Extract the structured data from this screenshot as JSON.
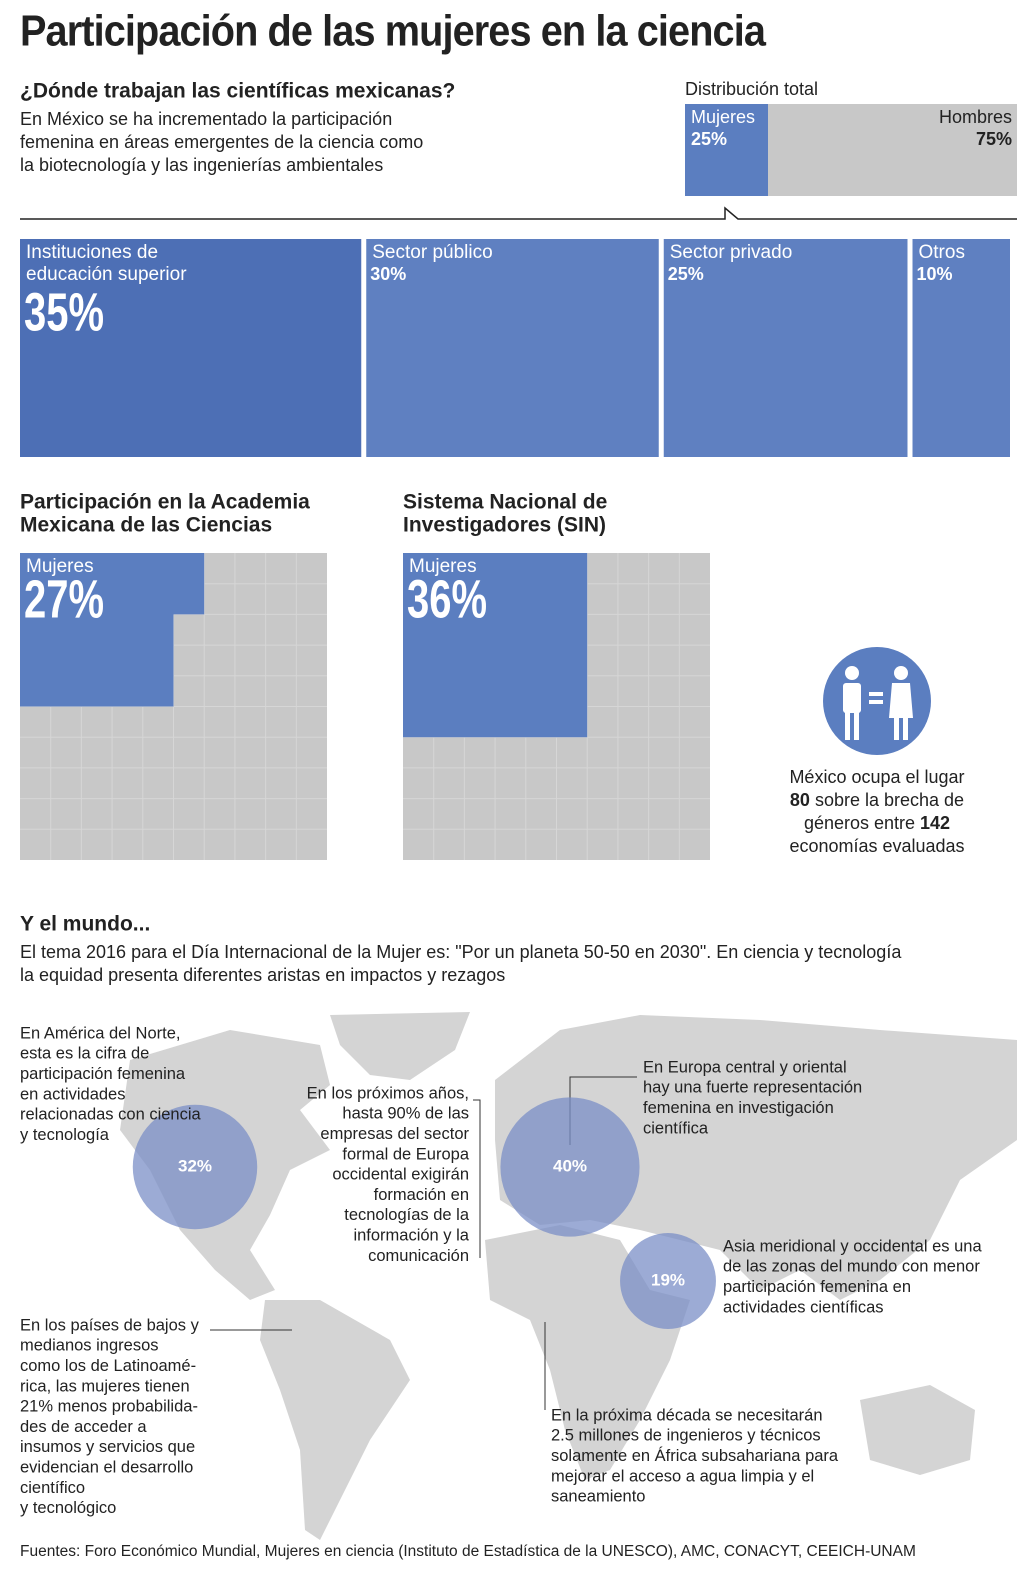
{
  "title": "Participación de las mujeres en la ciencia",
  "intro": {
    "heading": "¿Dónde trabajan las científicas mexicanas?",
    "lines": [
      "En México se ha incrementado la participación",
      "femenina en áreas emergentes de la ciencia como",
      "la biotecnología y las ingenierías ambientales"
    ]
  },
  "distribution": {
    "title": "Distribución total",
    "segments": [
      {
        "name": "Mujeres",
        "value": 25,
        "label": "25%",
        "color": "#5b7ec0"
      },
      {
        "name": "Hombres",
        "value": 75,
        "label": "75%",
        "color": "#c8c8c8"
      }
    ]
  },
  "sectors": [
    {
      "name_lines": [
        "Instituciones de",
        "educación superior"
      ],
      "value": 35,
      "label": "35%",
      "color": "#4d6fb5"
    },
    {
      "name_lines": [
        "Sector público"
      ],
      "value": 30,
      "label": "30%",
      "color": "#5f80c1"
    },
    {
      "name_lines": [
        "Sector privado"
      ],
      "value": 25,
      "label": "25%",
      "color": "#5f80c1"
    },
    {
      "name_lines": [
        "Otros"
      ],
      "value": 10,
      "label": "10%",
      "color": "#5f80c1"
    }
  ],
  "grids": [
    {
      "title_lines": [
        "Participación en la Academia",
        "Mexicana de las Ciencias"
      ],
      "name": "Mujeres",
      "value": 27,
      "label": "27%",
      "color": "#5b7ec0",
      "rest_color": "#c8c8c8"
    },
    {
      "title_lines": [
        "Sistema Nacional de",
        "Investigadores (SIN)"
      ],
      "name": "Mujeres",
      "value": 36,
      "label": "36%",
      "color": "#5b7ec0",
      "rest_color": "#c8c8c8"
    }
  ],
  "ranking": {
    "line1": "México ocupa el lugar",
    "place": 80,
    "line2": "sobre la brecha de",
    "line3": "géneros entre",
    "total": 142,
    "line4": "economías evaluadas"
  },
  "world": {
    "heading": "Y el mundo...",
    "lines": [
      "El tema 2016 para el Día Internacional de la Mujer es: \"Por un planeta 50-50 en 2030\". En ciencia y tecnología",
      "la equidad presenta diferentes aristas en impactos y rezagos"
    ],
    "bubbles": [
      {
        "value": 32,
        "label": "32%"
      },
      {
        "value": 40,
        "label": "40%"
      },
      {
        "value": 19,
        "label": "19%"
      }
    ],
    "notes": [
      {
        "lines": [
          "En América del Norte,",
          "esta es la cifra de",
          "participación femenina",
          "en actividades",
          "relacionadas con ciencia",
          "y tecnología"
        ]
      },
      {
        "lines": [
          "En los próximos años,",
          "hasta 90% de las",
          "empresas  del sector",
          "formal de Europa",
          "occidental exigirán",
          "formación en",
          "tecnologías de la",
          "información y la",
          "comunicación"
        ]
      },
      {
        "lines": [
          "En Europa central y oriental",
          "hay  una fuerte representación",
          "femenina en investigación",
          "científica"
        ]
      },
      {
        "lines": [
          "Asia meridional y occidental es una",
          "de las zonas del mundo con menor",
          "participación femenina en",
          "actividades científicas"
        ]
      },
      {
        "lines": [
          "En los países de bajos y",
          "medianos ingresos",
          "como los de Latinoamé-",
          "rica, las mujeres tienen",
          "21% menos probabilida-",
          "des de acceder a",
          "insumos y servicios que",
          "evidencian el desarrollo",
          "científico",
          "y tecnológico"
        ]
      },
      {
        "lines": [
          "En la próxima década se necesitarán",
          "2.5 millones de ingenieros y técnicos",
          "solamente en África subsahariana para",
          "mejorar el acceso a agua limpia y el",
          "saneamiento"
        ]
      }
    ]
  },
  "sources": "Fuentes: Foro Económico Mundial, Mujeres en ciencia (Instituto de Estadística de la UNESCO), AMC, CONACYT, CEEICH-UNAM"
}
